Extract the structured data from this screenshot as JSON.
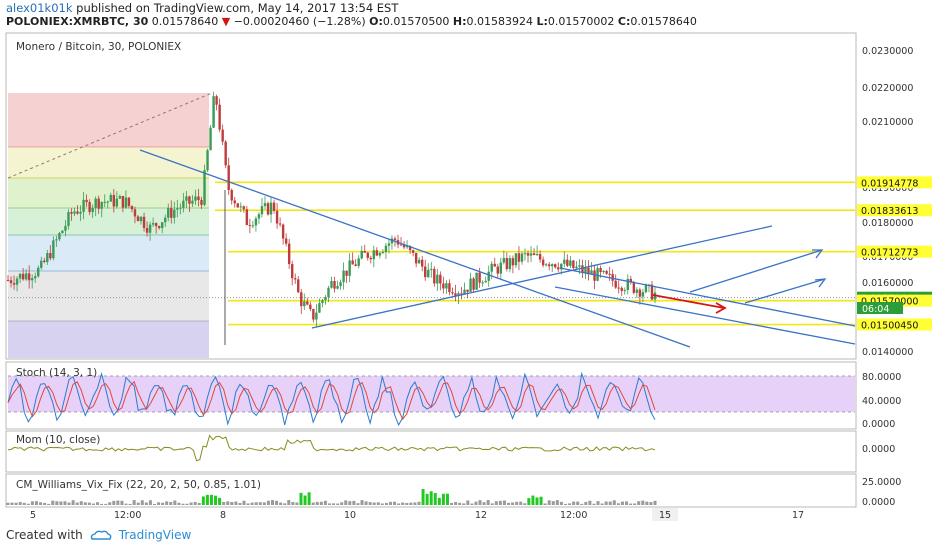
{
  "header": {
    "author": "alex01k01k",
    "published_text": "published on TradingView.com, May 14, 2017 13:54 EST",
    "symbol": "POLONIEX:XMRBTC, 30",
    "last_price": "0.01578640",
    "change_arrow": "▼",
    "change": "−0.00020460 (−1.28%)",
    "o_label": "O:",
    "o_value": "0.01570500",
    "h_label": "H:",
    "h_value": "0.01583924",
    "l_label": "L:",
    "l_value": "0.01570002",
    "c_label": "C:",
    "c_value": "0.01578640"
  },
  "main_pane": {
    "title": "Monero / Bitcoin, 30, POLONIEX",
    "timer": "06:04"
  },
  "price_axis": [
    "0.0230000",
    "0.0220000",
    "0.0210000",
    "0.0190000",
    "0.0180000",
    "0.0170000",
    "0.0160000",
    "0.0140000"
  ],
  "price_tags": [
    {
      "text": "0.01914778",
      "color": "#ffff33",
      "price": 0.01914778
    },
    {
      "text": "0.01833613",
      "color": "#ffff33",
      "price": 0.01833613
    },
    {
      "text": "0.01712773",
      "color": "#ffff33",
      "price": 0.01712773
    },
    {
      "text": "0.01578640",
      "color": "#2b9e3a",
      "price": 0.0157864
    },
    {
      "text": "0.01570000",
      "color": "#ffff33",
      "price": 0.0157
    },
    {
      "text": "0.01500450",
      "color": "#ffff33",
      "price": 0.0150045
    }
  ],
  "stoch": {
    "title": "Stoch (14, 3, 1)",
    "axis": [
      "80.0000",
      "40.0000",
      "0.0000"
    ]
  },
  "mom": {
    "title": "Mom (10, close)",
    "axis": [
      "0.0000"
    ]
  },
  "vix": {
    "title": "CM_Williams_Vix_Fix (22, 20, 2, 50, 0.85, 1.01)",
    "axis": [
      "25.0000",
      "0.0000"
    ]
  },
  "time_axis": [
    "5",
    "12:00",
    "8",
    "10",
    "12",
    "12:00",
    "15",
    "17"
  ],
  "footer": {
    "created_with": "Created with",
    "brand": "TradingView"
  },
  "chart_data": {
    "type": "candlestick",
    "title": "Monero / Bitcoin, 30, POLONIEX",
    "ylim": [
      0.014,
      0.0235
    ],
    "x_ticks": [
      "5",
      "12:00",
      "8",
      "10",
      "12",
      "12:00",
      "15",
      "17"
    ],
    "price_path": [
      {
        "t": 0,
        "p": 0.0163
      },
      {
        "t": 5,
        "p": 0.0166
      },
      {
        "t": 10,
        "p": 0.0183
      },
      {
        "t": 14,
        "p": 0.0186
      },
      {
        "t": 18,
        "p": 0.0186
      },
      {
        "t": 22,
        "p": 0.0178
      },
      {
        "t": 26,
        "p": 0.0184
      },
      {
        "t": 30,
        "p": 0.0187
      },
      {
        "t": 32,
        "p": 0.0218
      },
      {
        "t": 34,
        "p": 0.019
      },
      {
        "t": 37,
        "p": 0.018
      },
      {
        "t": 41,
        "p": 0.0185
      },
      {
        "t": 45,
        "p": 0.0158
      },
      {
        "t": 47,
        "p": 0.0152
      },
      {
        "t": 50,
        "p": 0.0162
      },
      {
        "t": 55,
        "p": 0.017
      },
      {
        "t": 60,
        "p": 0.0175
      },
      {
        "t": 66,
        "p": 0.0163
      },
      {
        "t": 70,
        "p": 0.016
      },
      {
        "t": 75,
        "p": 0.0166
      },
      {
        "t": 80,
        "p": 0.017
      },
      {
        "t": 85,
        "p": 0.0168
      },
      {
        "t": 90,
        "p": 0.0165
      },
      {
        "t": 95,
        "p": 0.0162
      },
      {
        "t": 100,
        "p": 0.0159
      }
    ],
    "horizontal_levels": [
      0.01914778,
      0.01833613,
      0.01712773,
      0.0157,
      0.0150045
    ],
    "last_price": 0.0157864
  }
}
